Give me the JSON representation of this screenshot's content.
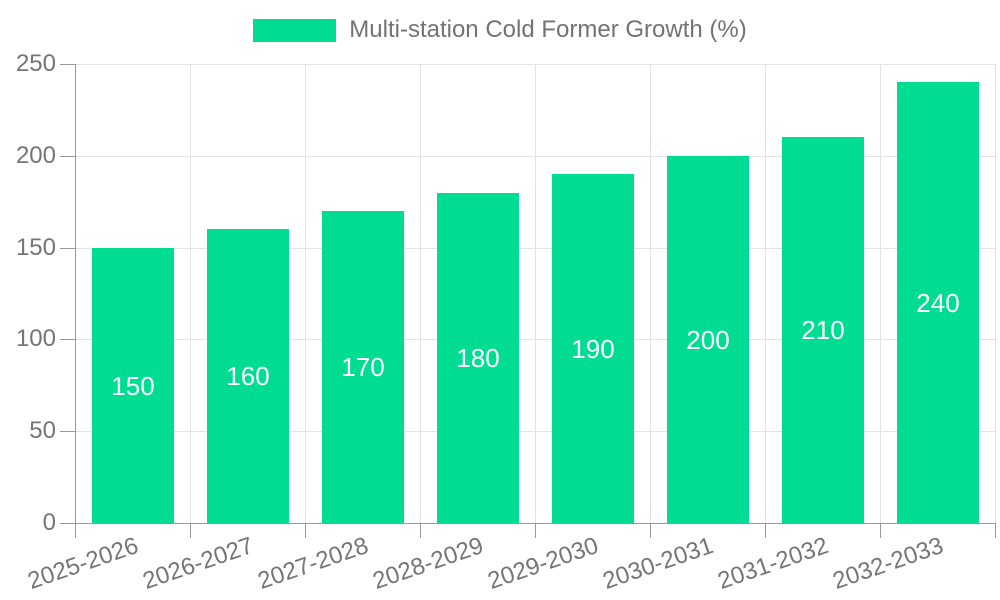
{
  "legend": {
    "label": "Multi-station Cold Former Growth (%)"
  },
  "chart_data": {
    "type": "bar",
    "title": "Multi-station Cold Former Growth (%)",
    "categories": [
      "2025-2026",
      "2026-2027",
      "2027-2028",
      "2028-2029",
      "2029-2030",
      "2030-2031",
      "2031-2032",
      "2032-2033"
    ],
    "values": [
      150,
      160,
      170,
      180,
      190,
      200,
      210,
      240
    ],
    "data_labels": [
      "150",
      "160",
      "170",
      "180",
      "190",
      "200",
      "210",
      "240"
    ],
    "ytick_labels": [
      "0",
      "50",
      "100",
      "150",
      "200",
      "250"
    ],
    "yticks": [
      0,
      50,
      100,
      150,
      200,
      250
    ],
    "ylim": [
      0,
      250
    ],
    "xlabel": "",
    "ylabel": "",
    "grid": true,
    "legend_position": "top-center",
    "x_label_rotation_deg": -19
  },
  "colors": {
    "bar": "#00dc91",
    "bar_label": "#ffffff",
    "axis": "#999999",
    "gridline": "#e3e3e3",
    "tick_text": "#757575",
    "legend_text": "#737373",
    "background": "#ffffff"
  }
}
